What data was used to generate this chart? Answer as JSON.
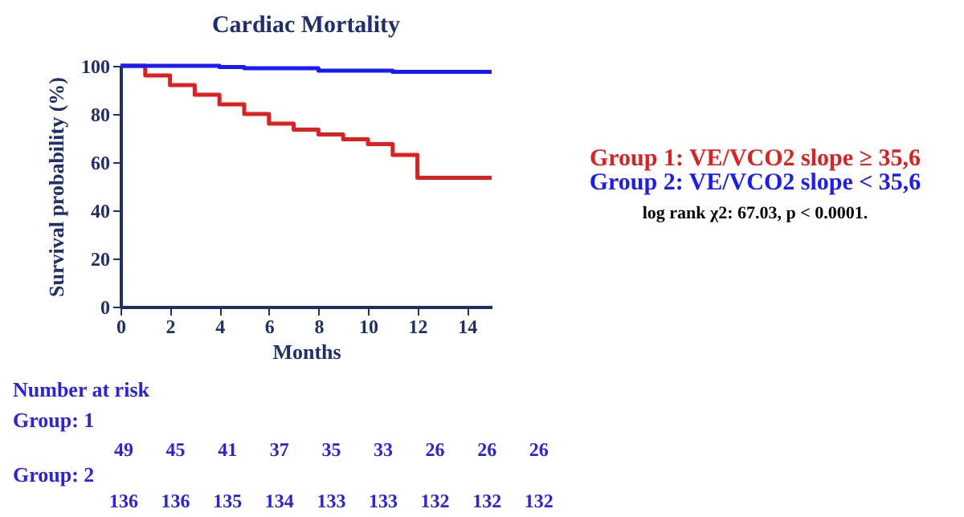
{
  "chart_data": {
    "type": "step",
    "title": "Cardiac Mortality",
    "xlabel": "Months",
    "ylabel": "Survival probability (%)",
    "xlim": [
      0,
      15
    ],
    "xticks": [
      0,
      2,
      4,
      6,
      8,
      10,
      12,
      14
    ],
    "ylim": [
      0,
      100
    ],
    "yticks": [
      0,
      20,
      40,
      60,
      80,
      100
    ],
    "grid": false,
    "legend": "right",
    "marker": "none",
    "line_style": "solid",
    "series": [
      {
        "name": "Group 1: VE/VCO2 slope ≥ 35,6",
        "color": "#e02020",
        "x": [
          0,
          1,
          2,
          3,
          4,
          5,
          6,
          7,
          8,
          9,
          10,
          11,
          12,
          15
        ],
        "values": [
          100,
          96,
          92,
          88,
          84,
          80,
          76,
          73.5,
          71.5,
          69.5,
          67.5,
          63,
          53.5,
          53.5
        ]
      },
      {
        "name": "Group 2: VE/VCO2 slope < 35,6",
        "color": "#1a1aff",
        "x": [
          0,
          4,
          5,
          8,
          11,
          15
        ],
        "values": [
          100,
          99.5,
          99,
          98,
          97.5,
          97.5
        ]
      }
    ],
    "annotations": [
      "log rank χ2: 67.03, p < 0.0001.",
      "Number at risk",
      "Group: 1",
      "49    45    41    37    35    33    26    26    26",
      "Group: 2",
      "136  136  135  134  133  133  132  132  132"
    ]
  }
}
